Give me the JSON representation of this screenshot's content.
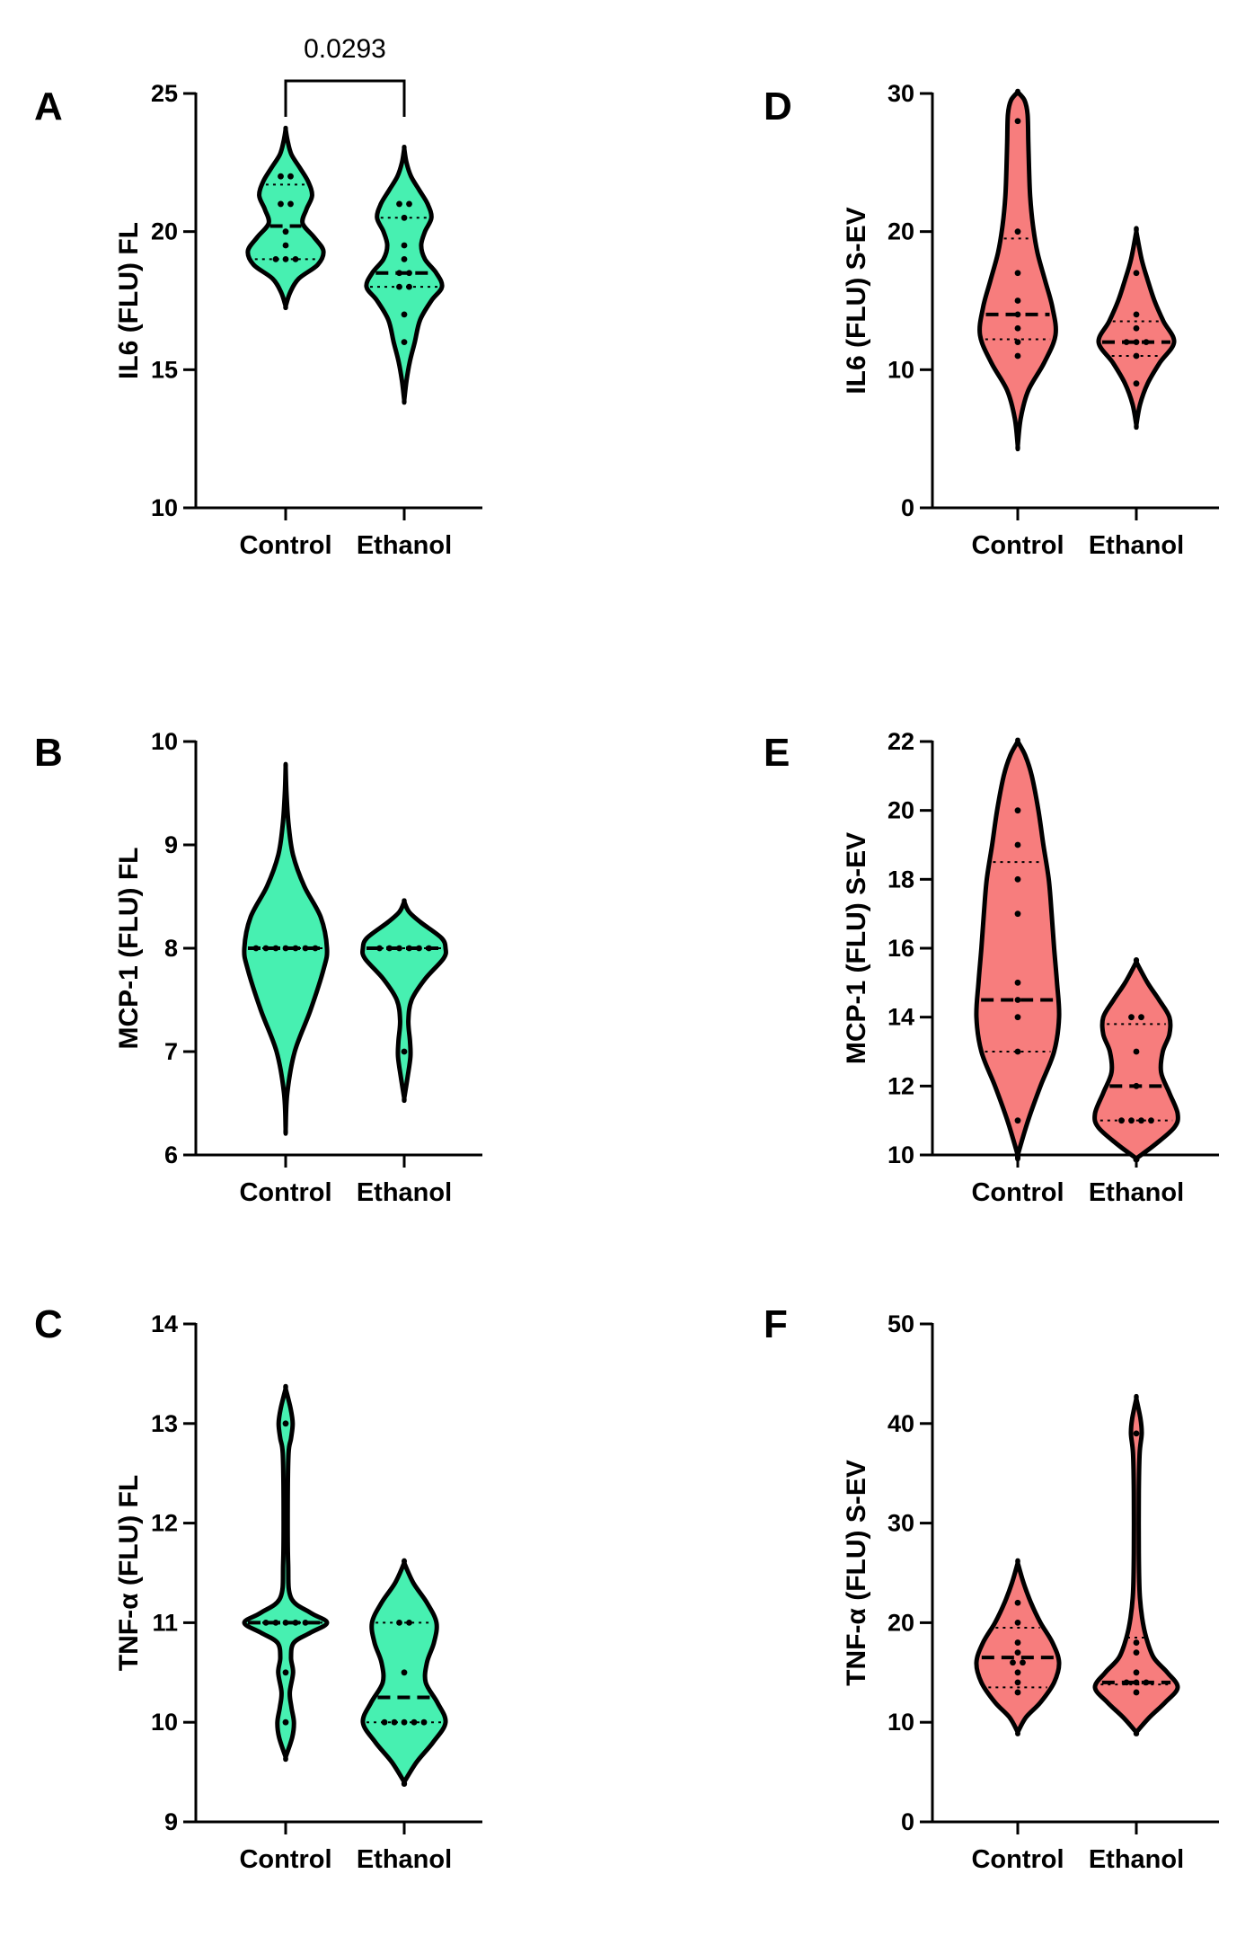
{
  "figure": {
    "description_colors": {
      "green": "#47F0B1",
      "red": "#F77D7D",
      "outline": "#000000"
    }
  },
  "chart_data": [
    {
      "panel": "A",
      "type": "violin",
      "ylabel": "IL6 (FLU) FL",
      "ylim": [
        10,
        25
      ],
      "yticks": [
        10,
        15,
        20,
        25
      ],
      "yticklabels": [
        "10",
        "15",
        "20",
        "25"
      ],
      "categories": [
        "Control",
        "Ethanol"
      ],
      "fill_color": "#47F0B1",
      "annotation": {
        "text": "0.0293",
        "between": [
          "Control",
          "Ethanol"
        ]
      },
      "series": [
        {
          "name": "Control",
          "points": [
            22,
            22,
            21,
            21,
            20,
            19.5,
            19,
            19,
            19
          ],
          "median": 20.2,
          "q1": 19,
          "q3": 21.7,
          "shape": [
            [
              17.3,
              0
            ],
            [
              17.8,
              0.12
            ],
            [
              18.3,
              0.35
            ],
            [
              18.8,
              0.85
            ],
            [
              19.3,
              1.0
            ],
            [
              19.8,
              0.75
            ],
            [
              20.3,
              0.45
            ],
            [
              20.8,
              0.55
            ],
            [
              21.3,
              0.7
            ],
            [
              21.8,
              0.6
            ],
            [
              22.3,
              0.38
            ],
            [
              22.8,
              0.15
            ],
            [
              23.3,
              0.05
            ],
            [
              23.7,
              0
            ]
          ]
        },
        {
          "name": "Ethanol",
          "points": [
            21,
            21,
            20.5,
            19.5,
            19,
            18.5,
            18.5,
            18,
            18,
            17,
            16
          ],
          "median": 18.5,
          "q1": 18,
          "q3": 20.5,
          "shape": [
            [
              13.9,
              0
            ],
            [
              14.6,
              0.06
            ],
            [
              15.3,
              0.15
            ],
            [
              16.0,
              0.28
            ],
            [
              16.8,
              0.42
            ],
            [
              17.5,
              0.72
            ],
            [
              18.0,
              1.0
            ],
            [
              18.5,
              0.85
            ],
            [
              19.0,
              0.55
            ],
            [
              19.5,
              0.45
            ],
            [
              20.0,
              0.55
            ],
            [
              20.5,
              0.72
            ],
            [
              21.0,
              0.62
            ],
            [
              21.5,
              0.4
            ],
            [
              22.0,
              0.18
            ],
            [
              22.5,
              0.06
            ],
            [
              23.0,
              0
            ]
          ]
        }
      ]
    },
    {
      "panel": "B",
      "type": "violin",
      "ylabel": "MCP-1 (FLU) FL",
      "ylim": [
        6,
        10
      ],
      "yticks": [
        6,
        7,
        8,
        9,
        10
      ],
      "yticklabels": [
        "6",
        "7",
        "8",
        "9",
        "10"
      ],
      "categories": [
        "Control",
        "Ethanol"
      ],
      "fill_color": "#47F0B1",
      "series": [
        {
          "name": "Control",
          "points": [
            8,
            8,
            8,
            8,
            8,
            8,
            8
          ],
          "median": 8,
          "q1": 8,
          "q3": 8,
          "shape": [
            [
              6.25,
              0
            ],
            [
              6.6,
              0.04
            ],
            [
              7.0,
              0.22
            ],
            [
              7.4,
              0.6
            ],
            [
              7.8,
              0.92
            ],
            [
              8.0,
              1.0
            ],
            [
              8.3,
              0.85
            ],
            [
              8.6,
              0.45
            ],
            [
              8.9,
              0.18
            ],
            [
              9.2,
              0.07
            ],
            [
              9.5,
              0.02
            ],
            [
              9.75,
              0
            ]
          ]
        },
        {
          "name": "Ethanol",
          "points": [
            8,
            8,
            8,
            8,
            8,
            8,
            7
          ],
          "median": 8,
          "q1": 8,
          "q3": 8,
          "shape": [
            [
              6.55,
              0
            ],
            [
              6.75,
              0.08
            ],
            [
              6.95,
              0.15
            ],
            [
              7.1,
              0.14
            ],
            [
              7.3,
              0.1
            ],
            [
              7.5,
              0.18
            ],
            [
              7.7,
              0.5
            ],
            [
              7.9,
              0.95
            ],
            [
              8.0,
              1.0
            ],
            [
              8.1,
              0.9
            ],
            [
              8.25,
              0.4
            ],
            [
              8.35,
              0.12
            ],
            [
              8.45,
              0
            ]
          ]
        }
      ]
    },
    {
      "panel": "C",
      "type": "violin",
      "ylabel": "TNF-α (FLU) FL",
      "ylim": [
        9,
        14
      ],
      "yticks": [
        9,
        10,
        11,
        12,
        13,
        14
      ],
      "yticklabels": [
        "9",
        "10",
        "11",
        "12",
        "13",
        "14"
      ],
      "categories": [
        "Control",
        "Ethanol"
      ],
      "fill_color": "#47F0B1",
      "series": [
        {
          "name": "Control",
          "points": [
            13,
            11,
            11,
            11,
            11,
            11,
            10.5,
            10
          ],
          "median": 11,
          "q1": 11,
          "q3": 11,
          "shape": [
            [
              9.65,
              0
            ],
            [
              9.85,
              0.16
            ],
            [
              10.0,
              0.2
            ],
            [
              10.15,
              0.14
            ],
            [
              10.3,
              0.1
            ],
            [
              10.5,
              0.18
            ],
            [
              10.65,
              0.13
            ],
            [
              10.8,
              0.2
            ],
            [
              10.9,
              0.6
            ],
            [
              11.0,
              1.0
            ],
            [
              11.1,
              0.6
            ],
            [
              11.25,
              0.13
            ],
            [
              11.6,
              0.06
            ],
            [
              12.2,
              0.05
            ],
            [
              12.7,
              0.07
            ],
            [
              12.85,
              0.13
            ],
            [
              13.0,
              0.17
            ],
            [
              13.15,
              0.12
            ],
            [
              13.35,
              0
            ]
          ]
        },
        {
          "name": "Ethanol",
          "points": [
            11,
            11,
            10.5,
            10,
            10,
            10,
            10,
            10
          ],
          "median": 10.25,
          "q1": 10,
          "q3": 11,
          "shape": [
            [
              9.4,
              0
            ],
            [
              9.6,
              0.3
            ],
            [
              9.8,
              0.7
            ],
            [
              10.0,
              1.0
            ],
            [
              10.2,
              0.8
            ],
            [
              10.4,
              0.52
            ],
            [
              10.6,
              0.55
            ],
            [
              10.8,
              0.72
            ],
            [
              11.0,
              0.78
            ],
            [
              11.2,
              0.55
            ],
            [
              11.4,
              0.22
            ],
            [
              11.6,
              0
            ]
          ]
        }
      ]
    },
    {
      "panel": "D",
      "type": "violin",
      "ylabel": "IL6 (FLU) S-EV",
      "ylim": [
        0,
        30
      ],
      "yticks": [
        0,
        10,
        20,
        30
      ],
      "yticklabels": [
        "0",
        "10",
        "20",
        "30"
      ],
      "categories": [
        "Control",
        "Ethanol"
      ],
      "fill_color": "#F77D7D",
      "series": [
        {
          "name": "Control",
          "points": [
            28,
            20,
            17,
            15,
            14,
            13,
            12,
            11
          ],
          "median": 14,
          "q1": 12.2,
          "q3": 19.5,
          "shape": [
            [
              4.5,
              0
            ],
            [
              6.5,
              0.08
            ],
            [
              8.5,
              0.28
            ],
            [
              10.5,
              0.7
            ],
            [
              12.5,
              1.0
            ],
            [
              14.5,
              0.92
            ],
            [
              16.5,
              0.72
            ],
            [
              18.5,
              0.52
            ],
            [
              20.5,
              0.4
            ],
            [
              22.5,
              0.33
            ],
            [
              24.5,
              0.3
            ],
            [
              26.5,
              0.28
            ],
            [
              28.5,
              0.26
            ],
            [
              29.5,
              0.18
            ],
            [
              30.1,
              0
            ]
          ]
        },
        {
          "name": "Ethanol",
          "points": [
            17,
            14,
            13,
            12,
            12,
            12,
            11,
            9
          ],
          "median": 12,
          "q1": 11,
          "q3": 13.5,
          "shape": [
            [
              6.0,
              0
            ],
            [
              7.5,
              0.1
            ],
            [
              9.0,
              0.3
            ],
            [
              10.5,
              0.62
            ],
            [
              12.0,
              1.0
            ],
            [
              13.5,
              0.72
            ],
            [
              15.0,
              0.48
            ],
            [
              16.5,
              0.3
            ],
            [
              18.0,
              0.14
            ],
            [
              20.0,
              0
            ]
          ]
        }
      ]
    },
    {
      "panel": "E",
      "type": "violin",
      "ylabel": "MCP-1 (FLU) S-EV",
      "ylim": [
        10,
        22
      ],
      "yticks": [
        10,
        12,
        14,
        16,
        18,
        20,
        22
      ],
      "yticklabels": [
        "10",
        "12",
        "14",
        "16",
        "18",
        "20",
        "22"
      ],
      "categories": [
        "Control",
        "Ethanol"
      ],
      "fill_color": "#F77D7D",
      "series": [
        {
          "name": "Control",
          "points": [
            20,
            19,
            18,
            17,
            15,
            14.5,
            14,
            13,
            11
          ],
          "median": 14.5,
          "q1": 13,
          "q3": 18.5,
          "shape": [
            [
              10.0,
              0
            ],
            [
              11.0,
              0.25
            ],
            [
              12.0,
              0.55
            ],
            [
              13.0,
              0.88
            ],
            [
              14.0,
              1.0
            ],
            [
              15.0,
              0.95
            ],
            [
              16.0,
              0.88
            ],
            [
              17.0,
              0.82
            ],
            [
              18.0,
              0.75
            ],
            [
              19.0,
              0.62
            ],
            [
              20.0,
              0.5
            ],
            [
              21.0,
              0.34
            ],
            [
              21.6,
              0.18
            ],
            [
              22.0,
              0
            ]
          ]
        },
        {
          "name": "Ethanol",
          "points": [
            14,
            14,
            13,
            12,
            11,
            11,
            11,
            11
          ],
          "median": 12,
          "q1": 11,
          "q3": 13.8,
          "shape": [
            [
              9.9,
              0
            ],
            [
              10.3,
              0.45
            ],
            [
              10.8,
              0.92
            ],
            [
              11.2,
              1.0
            ],
            [
              11.8,
              0.8
            ],
            [
              12.4,
              0.6
            ],
            [
              13.0,
              0.64
            ],
            [
              13.5,
              0.8
            ],
            [
              14.0,
              0.8
            ],
            [
              14.5,
              0.55
            ],
            [
              15.0,
              0.27
            ],
            [
              15.6,
              0
            ]
          ]
        }
      ]
    },
    {
      "panel": "F",
      "type": "violin",
      "ylabel": "TNF-α (FLU) S-EV",
      "ylim": [
        0,
        50
      ],
      "yticks": [
        0,
        10,
        20,
        30,
        40,
        50
      ],
      "yticklabels": [
        "0",
        "10",
        "20",
        "30",
        "40",
        "50"
      ],
      "categories": [
        "Control",
        "Ethanol"
      ],
      "fill_color": "#F77D7D",
      "series": [
        {
          "name": "Control",
          "points": [
            22,
            20,
            18,
            17,
            16,
            16,
            15,
            14,
            13
          ],
          "median": 16.5,
          "q1": 13.5,
          "q3": 19.5,
          "shape": [
            [
              9.0,
              0
            ],
            [
              10.5,
              0.2
            ],
            [
              12.0,
              0.55
            ],
            [
              14.0,
              0.88
            ],
            [
              16.0,
              1.0
            ],
            [
              18.0,
              0.84
            ],
            [
              20.0,
              0.55
            ],
            [
              22.0,
              0.32
            ],
            [
              24.0,
              0.14
            ],
            [
              26.0,
              0
            ]
          ]
        },
        {
          "name": "Ethanol",
          "points": [
            39,
            18,
            17,
            15,
            14,
            14,
            14,
            13
          ],
          "median": 14,
          "q1": 13.8,
          "q3": 18.5,
          "shape": [
            [
              9.0,
              0
            ],
            [
              10.5,
              0.32
            ],
            [
              12.0,
              0.7
            ],
            [
              13.5,
              1.0
            ],
            [
              15.0,
              0.75
            ],
            [
              16.5,
              0.42
            ],
            [
              18.5,
              0.24
            ],
            [
              20.5,
              0.14
            ],
            [
              23.0,
              0.08
            ],
            [
              27.0,
              0.06
            ],
            [
              33.0,
              0.06
            ],
            [
              37.0,
              0.08
            ],
            [
              39.0,
              0.13
            ],
            [
              40.5,
              0.1
            ],
            [
              42.5,
              0
            ]
          ]
        }
      ]
    }
  ]
}
